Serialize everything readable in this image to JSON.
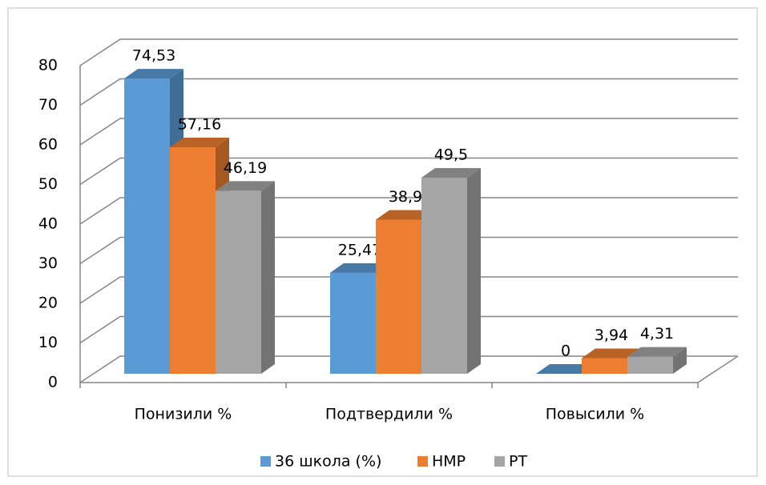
{
  "chart_data": {
    "type": "bar3d",
    "categories": [
      "Понизили  %",
      "Подтвердили %",
      "Повысили  %"
    ],
    "series": [
      {
        "name": "36 школа (%)",
        "color": "#5b9bd5",
        "values": [
          74.53,
          25.47,
          0
        ],
        "value_labels": [
          "74,53",
          "25,47",
          "0"
        ]
      },
      {
        "name": "НМР",
        "color": "#ed7d31",
        "values": [
          57.16,
          38.9,
          3.94
        ],
        "value_labels": [
          "57,16",
          "38,9",
          "3,94"
        ]
      },
      {
        "name": "РТ",
        "color": "#a5a5a5",
        "values": [
          46.19,
          49.5,
          4.31
        ],
        "value_labels": [
          "46,19",
          "49,5",
          "4,31"
        ]
      }
    ],
    "ylim": [
      0,
      80
    ],
    "yticks": [
      0,
      10,
      20,
      30,
      40,
      50,
      60,
      70,
      80
    ],
    "grid": true,
    "legend": "bottom"
  }
}
